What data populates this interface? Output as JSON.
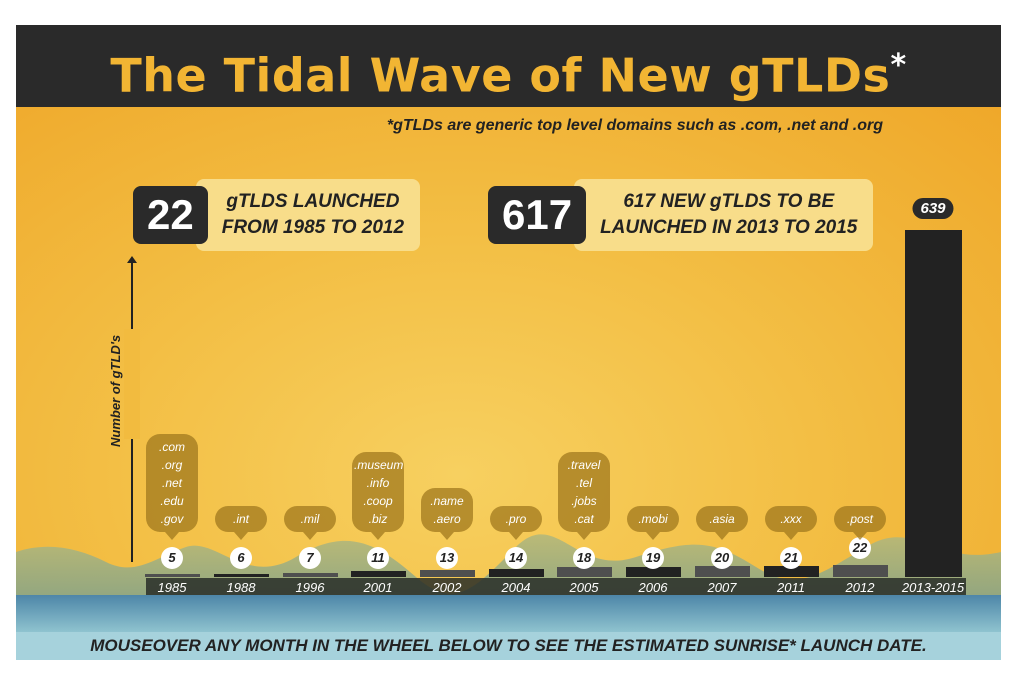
{
  "header": {
    "title": "The Tidal Wave of New gTLDs",
    "title_mark": "*"
  },
  "subtitle": "*gTLDs are generic top level domains such as .com, .net and .org",
  "stats": [
    {
      "number": "22",
      "line1": "gTLDS LAUNCHED",
      "line2": "FROM 1985 TO 2012"
    },
    {
      "number": "617",
      "line1": "617 NEW gTLDS TO BE",
      "line2": "LAUNCHED IN 2013 TO 2015"
    }
  ],
  "footer": "MOUSEOVER ANY MONTH IN THE WHEEL BELOW TO SEE THE ESTIMATED SUNRISE* LAUNCH DATE.",
  "colors": {
    "header": "#2a2a2a",
    "title": "#f2b533",
    "background": "#f3bf45",
    "bar_dark": "#222222",
    "bar_gray": "#4f4f4f",
    "footer": "#a6d2dc"
  },
  "chart_data": {
    "type": "bar",
    "ylabel": "Number of gTLD's",
    "categories": [
      "1985",
      "1988",
      "1996",
      "2001",
      "2002",
      "2004",
      "2005",
      "2006",
      "2007",
      "2011",
      "2012",
      "2013-2015"
    ],
    "values": [
      5,
      6,
      7,
      11,
      13,
      14,
      18,
      19,
      20,
      21,
      22,
      639
    ],
    "labels": [
      "5",
      "6",
      "7",
      "11",
      "13",
      "14",
      "18",
      "19",
      "20",
      "21",
      "22",
      "639"
    ],
    "domains": [
      [
        ".com",
        ".org",
        ".net",
        ".edu",
        ".gov"
      ],
      [
        ".int"
      ],
      [
        ".mil"
      ],
      [
        ".museum",
        ".info",
        ".coop",
        ".biz"
      ],
      [
        ".name",
        ".aero"
      ],
      [
        ".pro"
      ],
      [
        ".travel",
        ".tel",
        ".jobs",
        ".cat"
      ],
      [
        ".mobi"
      ],
      [
        ".asia"
      ],
      [
        ".xxx"
      ],
      [
        ".post"
      ],
      []
    ]
  }
}
